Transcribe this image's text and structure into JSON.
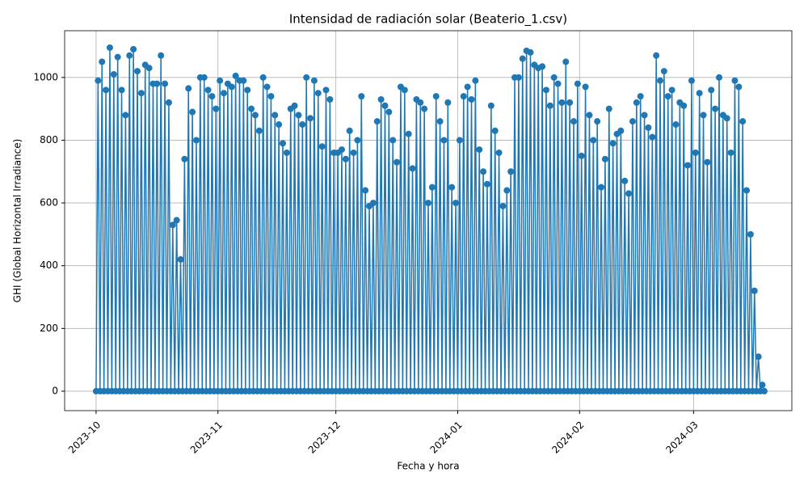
{
  "chart_data": {
    "type": "line",
    "title": "Intensidad de radiación solar (Beaterio_1.csv)",
    "x_label": "Fecha y hora",
    "y_label": "GHI (Global Horizontal Irradiance)",
    "color": "#1f77b4",
    "grid": true,
    "markers": true,
    "xlim": [
      -8,
      177
    ],
    "ylim": [
      -62,
      1149
    ],
    "xticks": [
      {
        "value": 0,
        "label": "2023-10"
      },
      {
        "value": 31,
        "label": "2023-11"
      },
      {
        "value": 61,
        "label": "2023-12"
      },
      {
        "value": 92,
        "label": "2024-01"
      },
      {
        "value": 123,
        "label": "2024-02"
      },
      {
        "value": 152,
        "label": "2024-03"
      }
    ],
    "yticks": [
      0,
      200,
      400,
      600,
      800,
      1000
    ],
    "x": [
      0,
      0.5,
      1,
      1.5,
      2,
      2.5,
      3,
      3.5,
      4,
      4.5,
      5,
      5.5,
      6,
      6.5,
      7,
      7.5,
      8,
      8.5,
      9,
      9.5,
      10,
      10.5,
      11,
      11.5,
      12,
      12.5,
      13,
      13.5,
      14,
      14.5,
      15,
      15.5,
      16,
      16.5,
      17,
      17.5,
      18,
      18.5,
      19,
      19.5,
      20,
      20.5,
      21,
      21.5,
      22,
      22.5,
      23,
      23.5,
      24,
      24.5,
      25,
      25.5,
      26,
      26.5,
      27,
      27.5,
      28,
      28.5,
      29,
      29.5,
      30,
      30.5,
      31,
      31.5,
      32,
      32.5,
      33,
      33.5,
      34,
      34.5,
      35,
      35.5,
      36,
      36.5,
      37,
      37.5,
      38,
      38.5,
      39,
      39.5,
      40,
      40.5,
      41,
      41.5,
      42,
      42.5,
      43,
      43.5,
      44,
      44.5,
      45,
      45.5,
      46,
      46.5,
      47,
      47.5,
      48,
      48.5,
      49,
      49.5,
      50,
      50.5,
      51,
      51.5,
      52,
      52.5,
      53,
      53.5,
      54,
      54.5,
      55,
      55.5,
      56,
      56.5,
      57,
      57.5,
      58,
      58.5,
      59,
      59.5,
      60,
      60.5,
      61,
      61.5,
      62,
      62.5,
      63,
      63.5,
      64,
      64.5,
      65,
      65.5,
      66,
      66.5,
      67,
      67.5,
      68,
      68.5,
      69,
      69.5,
      70,
      70.5,
      71,
      71.5,
      72,
      72.5,
      73,
      73.5,
      74,
      74.5,
      75,
      75.5,
      76,
      76.5,
      77,
      77.5,
      78,
      78.5,
      79,
      79.5,
      80,
      80.5,
      81,
      81.5,
      82,
      82.5,
      83,
      83.5,
      84,
      84.5,
      85,
      85.5,
      86,
      86.5,
      87,
      87.5,
      88,
      88.5,
      89,
      89.5,
      90,
      90.5,
      91,
      91.5,
      92,
      92.5,
      93,
      93.5,
      94,
      94.5,
      95,
      95.5,
      96,
      96.5,
      97,
      97.5,
      98,
      98.5,
      99,
      99.5,
      100,
      100.5,
      101,
      101.5,
      102,
      102.5,
      103,
      103.5,
      104,
      104.5,
      105,
      105.5,
      106,
      106.5,
      107,
      107.5,
      108,
      108.5,
      109,
      109.5,
      110,
      110.5,
      111,
      111.5,
      112,
      112.5,
      113,
      113.5,
      114,
      114.5,
      115,
      115.5,
      116,
      116.5,
      117,
      117.5,
      118,
      118.5,
      119,
      119.5,
      120,
      120.5,
      121,
      121.5,
      122,
      122.5,
      123,
      123.5,
      124,
      124.5,
      125,
      125.5,
      126,
      126.5,
      127,
      127.5,
      128,
      128.5,
      129,
      129.5,
      130,
      130.5,
      131,
      131.5,
      132,
      132.5,
      133,
      133.5,
      134,
      134.5,
      135,
      135.5,
      136,
      136.5,
      137,
      137.5,
      138,
      138.5,
      139,
      139.5,
      140,
      140.5,
      141,
      141.5,
      142,
      142.5,
      143,
      143.5,
      144,
      144.5,
      145,
      145.5,
      146,
      146.5,
      147,
      147.5,
      148,
      148.5,
      149,
      149.5,
      150,
      150.5,
      151,
      151.5,
      152,
      152.5,
      153,
      153.5,
      154,
      154.5,
      155,
      155.5,
      156,
      156.5,
      157,
      157.5,
      158,
      158.5,
      159,
      159.5,
      160,
      160.5,
      161,
      161.5,
      162,
      162.5,
      163,
      163.5,
      164,
      164.5,
      165,
      165.5,
      166,
      166.5,
      167,
      167.5,
      168,
      168.5,
      169,
      169.5,
      170
    ],
    "values": [
      0,
      990,
      0,
      1050,
      0,
      960,
      0,
      1095,
      0,
      1010,
      0,
      1065,
      0,
      960,
      0,
      880,
      0,
      1070,
      0,
      1090,
      0,
      1020,
      0,
      950,
      0,
      1040,
      0,
      1030,
      0,
      980,
      0,
      980,
      0,
      1070,
      0,
      980,
      0,
      920,
      0,
      530,
      0,
      545,
      0,
      420,
      0,
      740,
      0,
      965,
      0,
      890,
      0,
      800,
      0,
      1000,
      0,
      1000,
      0,
      960,
      0,
      940,
      0,
      900,
      0,
      990,
      0,
      950,
      0,
      980,
      0,
      970,
      0,
      1005,
      0,
      990,
      0,
      990,
      0,
      960,
      0,
      900,
      0,
      880,
      0,
      830,
      0,
      1000,
      0,
      970,
      0,
      940,
      0,
      880,
      0,
      850,
      0,
      790,
      0,
      760,
      0,
      900,
      0,
      910,
      0,
      880,
      0,
      850,
      0,
      1000,
      0,
      870,
      0,
      990,
      0,
      950,
      0,
      780,
      0,
      960,
      0,
      930,
      0,
      760,
      0,
      760,
      0,
      770,
      0,
      740,
      0,
      830,
      0,
      760,
      0,
      800,
      0,
      940,
      0,
      640,
      0,
      590,
      0,
      600,
      0,
      860,
      0,
      930,
      0,
      910,
      0,
      890,
      0,
      800,
      0,
      730,
      0,
      970,
      0,
      960,
      0,
      820,
      0,
      710,
      0,
      930,
      0,
      920,
      0,
      900,
      0,
      600,
      0,
      650,
      0,
      940,
      0,
      860,
      0,
      800,
      0,
      920,
      0,
      650,
      0,
      600,
      0,
      800,
      0,
      940,
      0,
      970,
      0,
      930,
      0,
      990,
      0,
      770,
      0,
      700,
      0,
      660,
      0,
      910,
      0,
      830,
      0,
      760,
      0,
      590,
      0,
      640,
      0,
      700,
      0,
      1000,
      0,
      1000,
      0,
      1060,
      0,
      1085,
      0,
      1080,
      0,
      1040,
      0,
      1030,
      0,
      1035,
      0,
      960,
      0,
      910,
      0,
      1000,
      0,
      980,
      0,
      920,
      0,
      1050,
      0,
      920,
      0,
      860,
      0,
      980,
      0,
      750,
      0,
      970,
      0,
      880,
      0,
      800,
      0,
      860,
      0,
      650,
      0,
      740,
      0,
      900,
      0,
      790,
      0,
      820,
      0,
      830,
      0,
      670,
      0,
      630,
      0,
      860,
      0,
      920,
      0,
      940,
      0,
      880,
      0,
      840,
      0,
      810,
      0,
      1070,
      0,
      990,
      0,
      1020,
      0,
      940,
      0,
      960,
      0,
      850,
      0,
      920,
      0,
      910,
      0,
      720,
      0,
      990,
      0,
      760,
      0,
      950,
      0,
      880,
      0,
      730,
      0,
      960,
      0,
      900,
      0,
      1000,
      0,
      880,
      0,
      870,
      0,
      760,
      0,
      990,
      0,
      970,
      0,
      860,
      0,
      640,
      0,
      500,
      0,
      320,
      0,
      110,
      0,
      20,
      0
    ]
  }
}
